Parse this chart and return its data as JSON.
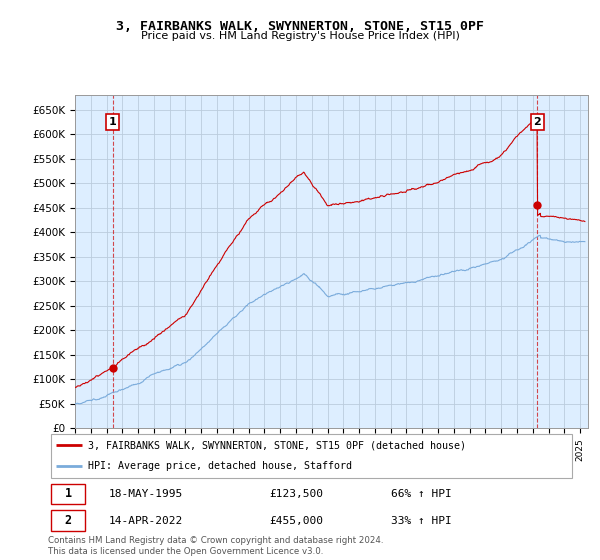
{
  "title": "3, FAIRBANKS WALK, SWYNNERTON, STONE, ST15 0PF",
  "subtitle": "Price paid vs. HM Land Registry's House Price Index (HPI)",
  "ylabel_ticks": [
    "£0",
    "£50K",
    "£100K",
    "£150K",
    "£200K",
    "£250K",
    "£300K",
    "£350K",
    "£400K",
    "£450K",
    "£500K",
    "£550K",
    "£600K",
    "£650K"
  ],
  "ytick_values": [
    0,
    50000,
    100000,
    150000,
    200000,
    250000,
    300000,
    350000,
    400000,
    450000,
    500000,
    550000,
    600000,
    650000
  ],
  "ylim": [
    0,
    680000
  ],
  "xlim_start": 1993.0,
  "xlim_end": 2025.5,
  "transaction1_date": 1995.38,
  "transaction1_price": 123500,
  "transaction2_date": 2022.28,
  "transaction2_price": 455000,
  "legend_line1": "3, FAIRBANKS WALK, SWYNNERTON, STONE, ST15 0PF (detached house)",
  "legend_line2": "HPI: Average price, detached house, Stafford",
  "table_row1_num": "1",
  "table_row1_date": "18-MAY-1995",
  "table_row1_price": "£123,500",
  "table_row1_hpi": "66% ↑ HPI",
  "table_row2_num": "2",
  "table_row2_date": "14-APR-2022",
  "table_row2_price": "£455,000",
  "table_row2_hpi": "33% ↑ HPI",
  "footer": "Contains HM Land Registry data © Crown copyright and database right 2024.\nThis data is licensed under the Open Government Licence v3.0.",
  "line_color_red": "#cc0000",
  "line_color_blue": "#7aabdb",
  "bg_color": "#ddeeff",
  "grid_color": "#bbccdd"
}
